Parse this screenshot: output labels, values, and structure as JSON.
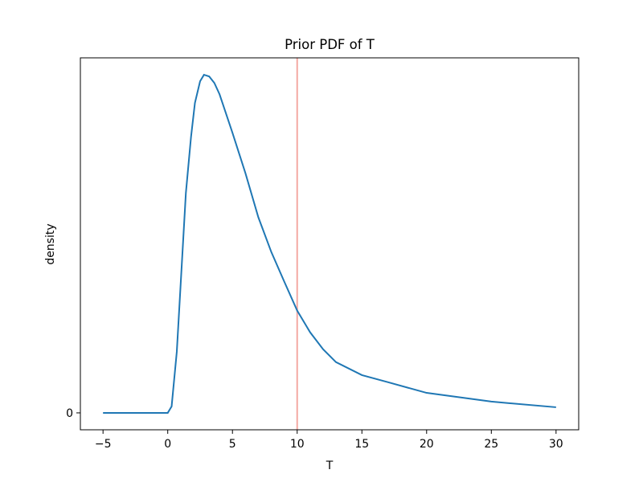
{
  "chart_data": {
    "type": "line",
    "title": "Prior PDF of T",
    "xlabel": "T",
    "ylabel": "density",
    "x": [
      -5,
      0,
      0.3,
      0.7,
      1.4,
      1.8,
      2.1,
      2.5,
      2.8,
      3.2,
      3.6,
      4,
      5,
      6,
      7,
      8,
      9,
      10,
      11,
      12,
      13,
      15,
      17,
      20,
      25,
      30
    ],
    "series": [
      {
        "color": "#1f77b4",
        "values": [
          0,
          0,
          0.0023,
          0.0217,
          0.078,
          0.098,
          0.11,
          0.1177,
          0.12,
          0.1194,
          0.1171,
          0.1131,
          0.0994,
          0.0851,
          0.0694,
          0.0571,
          0.0466,
          0.0363,
          0.0286,
          0.0226,
          0.018,
          0.0134,
          0.0109,
          0.0071,
          0.004,
          0.002
        ]
      }
    ],
    "vline": {
      "x": 10,
      "color": "#f4a9a2"
    },
    "xlim": [
      -6.75,
      31.75
    ],
    "xticks": [
      {
        "value": -5,
        "label": "−5"
      },
      0,
      5,
      10,
      15,
      20,
      25,
      30
    ],
    "ylim": [
      -0.006,
      0.126
    ],
    "yticks": [
      0
    ]
  }
}
